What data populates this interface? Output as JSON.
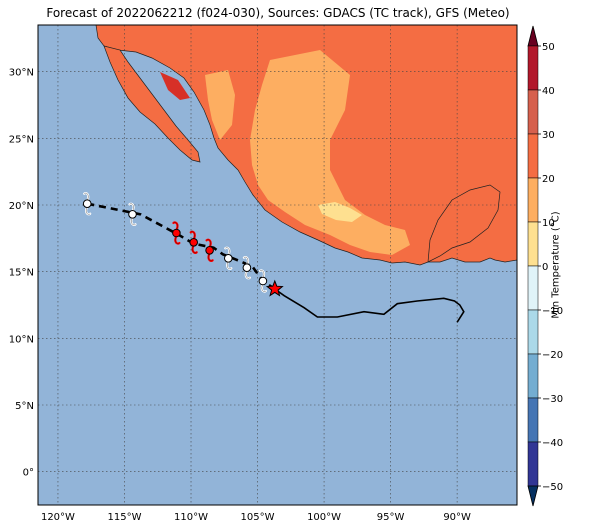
{
  "title": "Forecast of 2022062212 (f024-030), Sources: GDACS (TC track), GFS (Meteo)",
  "map": {
    "lon_ticks": [
      "120°W",
      "115°W",
      "110°W",
      "105°W",
      "100°W",
      "95°W",
      "90°W"
    ],
    "lat_ticks": [
      "30°N",
      "25°N",
      "20°N",
      "15°N",
      "10°N",
      "5°N",
      "0°"
    ],
    "ocean_color": "#92b4d8",
    "grid": true
  },
  "colorbar": {
    "label": "Min Temperature (°C)",
    "ticks": [
      "50",
      "40",
      "30",
      "20",
      "10",
      "0",
      "−10",
      "−20",
      "−30",
      "−40",
      "−50"
    ],
    "colors": [
      "#67001f",
      "#b2182b",
      "#d6604d",
      "#f4a582",
      "#fddbc7",
      "#f7f7f7",
      "#d1e5f0",
      "#92c5de",
      "#4393c3",
      "#2166ac",
      "#053061"
    ],
    "range": [
      -50,
      50
    ]
  },
  "chart_data": {
    "type": "map",
    "extent_lon": [
      -121.5,
      -85.5
    ],
    "extent_lat": [
      -2.5,
      33.5
    ],
    "track_past": [
      [
        -103.7,
        13.7
      ],
      [
        -103.0,
        13.2
      ],
      [
        -101.5,
        12.3
      ],
      [
        -100.5,
        11.6
      ],
      [
        -99.0,
        11.6
      ],
      [
        -97.0,
        12.0
      ],
      [
        -95.5,
        11.8
      ],
      [
        -94.5,
        12.6
      ],
      [
        -93.0,
        12.8
      ],
      [
        -91.0,
        13.0
      ],
      [
        -90.2,
        12.8
      ],
      [
        -89.8,
        12.5
      ],
      [
        -89.5,
        12.0
      ],
      [
        -90.0,
        11.2
      ]
    ],
    "track_forecast": [
      [
        -103.7,
        13.7
      ],
      [
        -104.6,
        14.3
      ],
      [
        -105.4,
        15.4
      ],
      [
        -106.6,
        15.9
      ],
      [
        -107.6,
        16.3
      ],
      [
        -108.3,
        16.8
      ],
      [
        -109.8,
        17.1
      ],
      [
        -111.0,
        17.8
      ],
      [
        -112.3,
        18.5
      ],
      [
        -113.8,
        19.3
      ],
      [
        -117.8,
        20.1
      ]
    ],
    "current_position": [
      -103.7,
      13.7
    ],
    "storm_markers": [
      {
        "lon": -117.8,
        "lat": 20.1,
        "color": "#ffffff"
      },
      {
        "lon": -114.4,
        "lat": 19.3,
        "color": "#ffffff"
      },
      {
        "lon": -111.1,
        "lat": 17.9,
        "color": "#ff0000"
      },
      {
        "lon": -109.8,
        "lat": 17.2,
        "color": "#ff0000"
      },
      {
        "lon": -108.6,
        "lat": 16.6,
        "color": "#ff0000"
      },
      {
        "lon": -107.2,
        "lat": 16.0,
        "color": "#ffffff"
      },
      {
        "lon": -105.8,
        "lat": 15.3,
        "color": "#ffffff"
      },
      {
        "lon": -104.6,
        "lat": 14.3,
        "color": "#ffffff"
      }
    ]
  }
}
